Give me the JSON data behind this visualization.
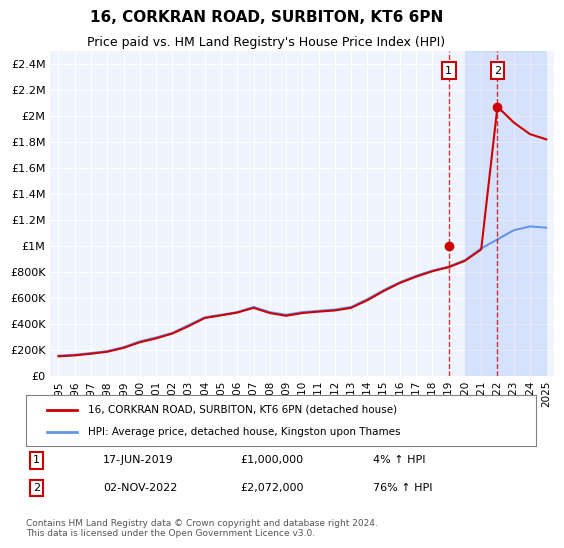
{
  "title": "16, CORKRAN ROAD, SURBITON, KT6 6PN",
  "subtitle": "Price paid vs. HM Land Registry's House Price Index (HPI)",
  "legend_line1": "16, CORKRAN ROAD, SURBITON, KT6 6PN (detached house)",
  "legend_line2": "HPI: Average price, detached house, Kingston upon Thames",
  "annotation1": {
    "label": "1",
    "date_idx": 24.5,
    "price": 1000000,
    "date_str": "17-JUN-2019",
    "amount": "£1,000,000",
    "pct": "4% ↑ HPI"
  },
  "annotation2": {
    "label": "2",
    "date_idx": 27.5,
    "price": 2072000,
    "date_str": "02-NOV-2022",
    "amount": "£2,072,000",
    "pct": "76% ↑ HPI"
  },
  "footer": "Contains HM Land Registry data © Crown copyright and database right 2024.\nThis data is licensed under the Open Government Licence v3.0.",
  "hpi_color": "#6495ED",
  "price_color": "#CC0000",
  "bg_color": "#f0f4ff",
  "plot_bg": "#f0f4ff",
  "years": [
    1995,
    1996,
    1997,
    1998,
    1999,
    2000,
    2001,
    2002,
    2003,
    2004,
    2005,
    2006,
    2007,
    2008,
    2009,
    2010,
    2011,
    2012,
    2013,
    2014,
    2015,
    2016,
    2017,
    2018,
    2019,
    2020,
    2021,
    2022,
    2023,
    2024,
    2025
  ],
  "hpi_values": [
    155000,
    162000,
    175000,
    190000,
    220000,
    265000,
    295000,
    330000,
    390000,
    450000,
    470000,
    490000,
    530000,
    490000,
    470000,
    490000,
    500000,
    510000,
    530000,
    590000,
    660000,
    720000,
    770000,
    810000,
    840000,
    890000,
    980000,
    1050000,
    1120000,
    1150000,
    1140000
  ],
  "price_values": [
    150000,
    157000,
    170000,
    185000,
    215000,
    258000,
    288000,
    325000,
    382000,
    445000,
    465000,
    487000,
    523000,
    483000,
    462000,
    483000,
    494000,
    503000,
    523000,
    582000,
    652000,
    715000,
    763000,
    805000,
    836000,
    885000,
    973000,
    2072000,
    1950000,
    1860000,
    1820000
  ],
  "ylim": [
    0,
    2500000
  ],
  "yticks": [
    0,
    200000,
    400000,
    600000,
    800000,
    1000000,
    1200000,
    1400000,
    1600000,
    1800000,
    2000000,
    2200000,
    2400000
  ]
}
